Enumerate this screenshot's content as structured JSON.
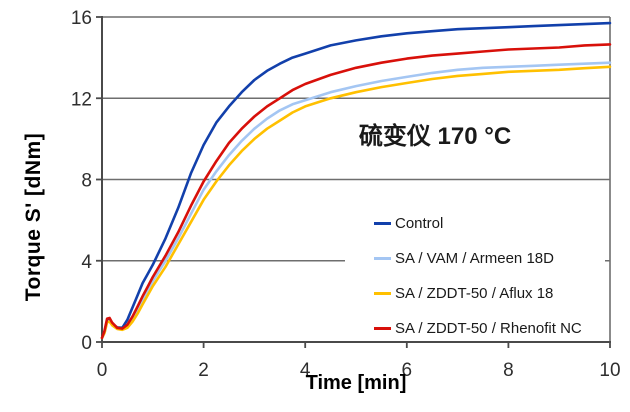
{
  "colors": {
    "axis": "#4a4a4a",
    "grid": "#6e6e6e",
    "tick_label": "#2e2e2e",
    "control": "#1240AB",
    "vam_armeen": "#A4C6F3",
    "aflux": "#FFC000",
    "rhenofit": "#D8100A"
  },
  "annotation": "硫变仪 170 °C",
  "chart_data": {
    "type": "line",
    "title": "",
    "annotation": "硫变仪 170 °C",
    "xlabel": "Time [min]",
    "ylabel": "Torque S' [dNm]",
    "xlim": [
      0,
      10
    ],
    "ylim": [
      0,
      16
    ],
    "x_ticks": [
      0,
      2,
      4,
      6,
      8,
      10
    ],
    "y_ticks": [
      0,
      4,
      8,
      12,
      16
    ],
    "grid": "horizontal gridlines at y ticks, boxed plot area",
    "legend_position": "inside lower-right, no border, white background",
    "t": [
      0,
      0.05,
      0.1,
      0.15,
      0.2,
      0.3,
      0.4,
      0.5,
      0.6,
      0.7,
      0.8,
      0.9,
      1,
      1.25,
      1.5,
      1.75,
      2,
      2.25,
      2.5,
      2.75,
      3,
      3.25,
      3.5,
      3.75,
      4,
      4.5,
      5,
      5.5,
      6,
      6.5,
      7,
      7.5,
      8,
      8.5,
      9,
      9.5,
      10
    ],
    "series": [
      {
        "name": "Control",
        "color": "#1240AB",
        "values": [
          0.2,
          0.5,
          1.05,
          1.08,
          0.9,
          0.72,
          0.7,
          1.1,
          1.7,
          2.3,
          2.9,
          3.35,
          3.8,
          5.1,
          6.6,
          8.3,
          9.7,
          10.8,
          11.6,
          12.3,
          12.9,
          13.35,
          13.7,
          14.0,
          14.2,
          14.6,
          14.85,
          15.05,
          15.2,
          15.3,
          15.4,
          15.45,
          15.5,
          15.55,
          15.6,
          15.65,
          15.7
        ]
      },
      {
        "name": "SA / VAM / Armeen 18D",
        "color": "#A4C6F3",
        "values": [
          0.2,
          0.45,
          1.0,
          1.02,
          0.85,
          0.66,
          0.62,
          0.75,
          1.1,
          1.55,
          2.0,
          2.5,
          3.0,
          4.0,
          5.1,
          6.3,
          7.5,
          8.4,
          9.2,
          9.9,
          10.5,
          11.0,
          11.4,
          11.7,
          11.9,
          12.3,
          12.6,
          12.85,
          13.05,
          13.25,
          13.4,
          13.5,
          13.55,
          13.6,
          13.65,
          13.7,
          13.75
        ]
      },
      {
        "name": "SA / ZDDT-50 / Aflux 18",
        "color": "#FFC000",
        "values": [
          0.2,
          0.45,
          0.98,
          1.0,
          0.82,
          0.64,
          0.6,
          0.7,
          1.0,
          1.4,
          1.85,
          2.3,
          2.75,
          3.7,
          4.8,
          5.9,
          7.0,
          7.9,
          8.7,
          9.4,
          10.0,
          10.5,
          10.9,
          11.3,
          11.6,
          12.0,
          12.3,
          12.55,
          12.75,
          12.95,
          13.1,
          13.2,
          13.3,
          13.35,
          13.4,
          13.48,
          13.55
        ]
      },
      {
        "name": "SA / ZDDT-50 / Rhenofit NC",
        "color": "#D8100A",
        "values": [
          0.2,
          0.55,
          1.15,
          1.18,
          0.95,
          0.7,
          0.66,
          0.85,
          1.25,
          1.75,
          2.25,
          2.72,
          3.2,
          4.25,
          5.4,
          6.7,
          7.9,
          8.9,
          9.8,
          10.5,
          11.1,
          11.6,
          12.0,
          12.4,
          12.7,
          13.15,
          13.5,
          13.75,
          13.95,
          14.1,
          14.2,
          14.3,
          14.4,
          14.45,
          14.5,
          14.6,
          14.65
        ]
      }
    ]
  }
}
